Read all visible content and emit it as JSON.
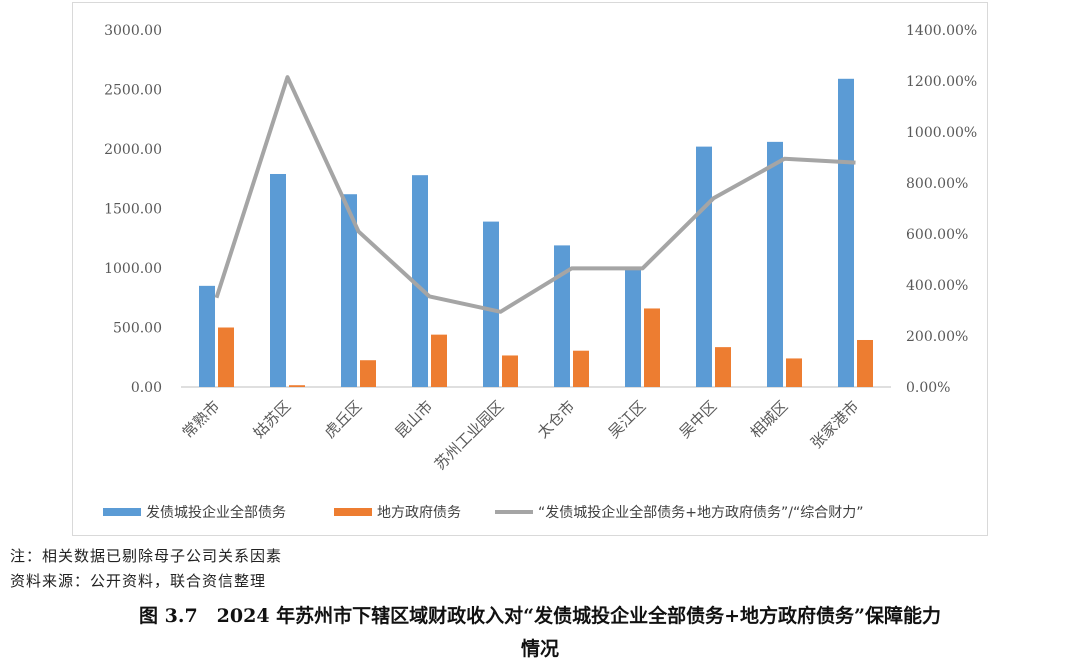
{
  "chart_data": {
    "type": "bar",
    "categories": [
      "常熟市",
      "姑苏区",
      "虎丘区",
      "昆山市",
      "苏州工业园区",
      "太仓市",
      "吴江区",
      "吴中区",
      "相城区",
      "张家港市"
    ],
    "series": [
      {
        "name": "发债城投企业全部债务",
        "type": "bar",
        "axis": "left",
        "color": "#5b9bd5",
        "values": [
          850,
          1790,
          1620,
          1780,
          1390,
          1190,
          1010,
          2020,
          2060,
          2590
        ]
      },
      {
        "name": "地方政府债务",
        "type": "bar",
        "axis": "left",
        "color": "#ed7d31",
        "values": [
          500,
          15,
          225,
          440,
          265,
          305,
          660,
          335,
          240,
          395
        ]
      },
      {
        "name": "“发债城投企业全部债务+地方政府债务”/“综合财力”",
        "type": "line",
        "axis": "right",
        "color": "#a5a5a5",
        "values": [
          350,
          1215,
          610,
          355,
          295,
          465,
          465,
          740,
          895,
          880
        ]
      }
    ],
    "left_axis": {
      "min": 0,
      "max": 3000,
      "ticks": [
        "0.00",
        "500.00",
        "1000.00",
        "1500.00",
        "2000.00",
        "2500.00",
        "3000.00"
      ]
    },
    "right_axis": {
      "min": 0,
      "max": 1400,
      "ticks": [
        "0.00%",
        "200.00%",
        "400.00%",
        "600.00%",
        "800.00%",
        "1000.00%",
        "1200.00%",
        "1400.00%"
      ]
    },
    "legend": "bottom",
    "grid": false
  },
  "notes": {
    "note1": "注：相关数据已剔除母子公司关系因素",
    "note2": "资料来源：公开资料，联合资信整理"
  },
  "caption": {
    "line1": "图 3.7　2024 年苏州市下辖区域财政收入对“发债城投企业全部债务+地方政府债务”保障能力",
    "line2": "情况"
  }
}
